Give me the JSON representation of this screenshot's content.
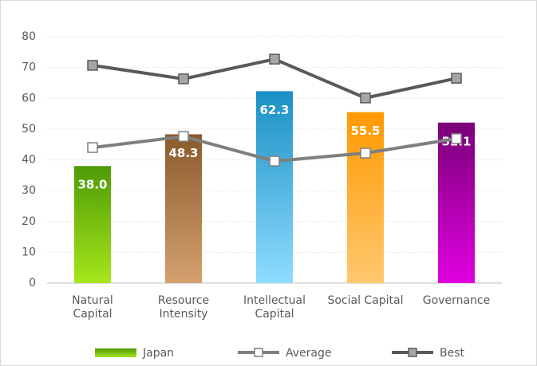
{
  "chart_data": {
    "type": "bar_line",
    "categories": [
      "Natural Capital",
      "Resource Intensity",
      "Intellectual Capital",
      "Social Capital",
      "Governance"
    ],
    "series": [
      {
        "name": "Japan",
        "type": "bar",
        "values": [
          38.0,
          48.3,
          62.3,
          55.5,
          52.1
        ],
        "value_labels": [
          "38.0",
          "48.3",
          "62.3",
          "55.5",
          "52.1"
        ],
        "colors": [
          "#4e9a06",
          "#8b5a2b",
          "#1a8fc4",
          "#ff9900",
          "#7a0078"
        ],
        "gradient_end": [
          "#a6e61a",
          "#d4a070",
          "#8fdcff",
          "#ffc870",
          "#e000e0"
        ]
      },
      {
        "name": "Average",
        "type": "line",
        "color": "#7f7f7f",
        "marker_fill": "#ffffff",
        "values": [
          44.0,
          47.6,
          39.6,
          42.2,
          46.9
        ]
      },
      {
        "name": "Best",
        "type": "line",
        "color": "#595959",
        "marker_fill": "#a6a6a6",
        "values": [
          70.7,
          66.3,
          72.7,
          60.1,
          66.5
        ]
      }
    ],
    "ylim": [
      0,
      80
    ],
    "yticks": [
      0,
      10,
      20,
      30,
      40,
      50,
      60,
      70,
      80
    ],
    "grid": true,
    "legend": "bottom"
  }
}
